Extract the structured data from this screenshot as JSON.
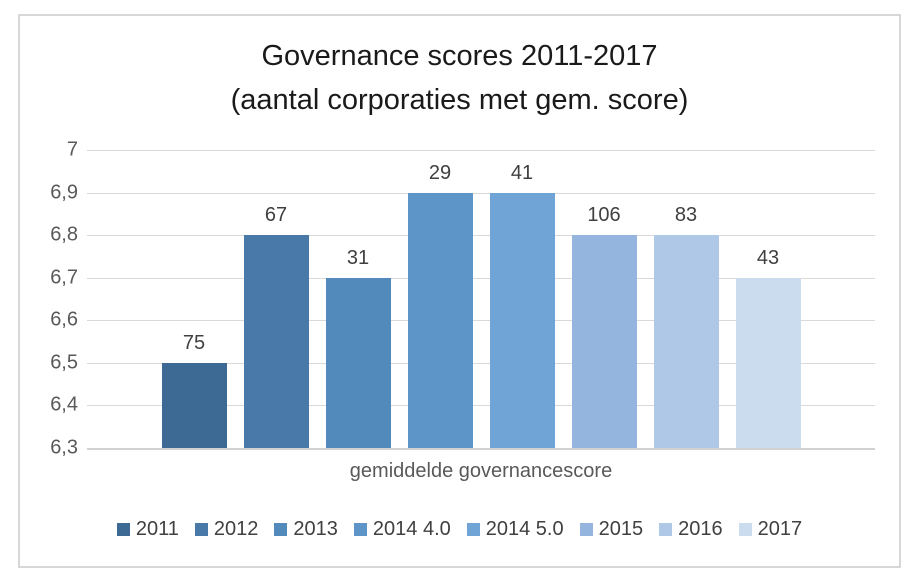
{
  "chart": {
    "title_line1": "Governance scores 2011-2017",
    "title_line2": "(aantal corporaties met gem. score)",
    "xlabel": "gemiddelde governancescore"
  },
  "colors": {
    "gridline": "#d9d9d9",
    "baseline": "#d2d2d2",
    "axis_text": "#595959",
    "data_label_text": "#404040",
    "title_text": "#1a1a1a",
    "frame_border": "#d7d7d7"
  },
  "chart_data": {
    "type": "bar",
    "title": "Governance scores 2011-2017 (aantal corporaties met gem. score)",
    "xlabel": "gemiddelde governancescore",
    "ylabel": "",
    "ylim": [
      6.3,
      7.0
    ],
    "yticks": [
      7.0,
      6.9,
      6.8,
      6.7,
      6.6,
      6.5,
      6.4,
      6.3
    ],
    "ytick_labels": [
      "7",
      "6,9",
      "6,8",
      "6,7",
      "6,6",
      "6,5",
      "6,4",
      "6,3"
    ],
    "grid": true,
    "legend_position": "bottom",
    "categories": [
      "gemiddelde governancescore"
    ],
    "series": [
      {
        "name": "2011",
        "value": 6.5,
        "count_label": "75",
        "color": "#3d6a94"
      },
      {
        "name": "2012",
        "value": 6.8,
        "count_label": "67",
        "color": "#4879a8"
      },
      {
        "name": "2013",
        "value": 6.7,
        "count_label": "31",
        "color": "#528bbb"
      },
      {
        "name": "2014 4.0",
        "value": 6.9,
        "count_label": "29",
        "color": "#5d95c9"
      },
      {
        "name": "2014 5.0",
        "value": 6.9,
        "count_label": "41",
        "color": "#71a4d6"
      },
      {
        "name": "2015",
        "value": 6.8,
        "count_label": "106",
        "color": "#94b6de"
      },
      {
        "name": "2016",
        "value": 6.8,
        "count_label": "83",
        "color": "#afc8e7"
      },
      {
        "name": "2017",
        "value": 6.7,
        "count_label": "43",
        "color": "#cbdcef"
      }
    ]
  }
}
